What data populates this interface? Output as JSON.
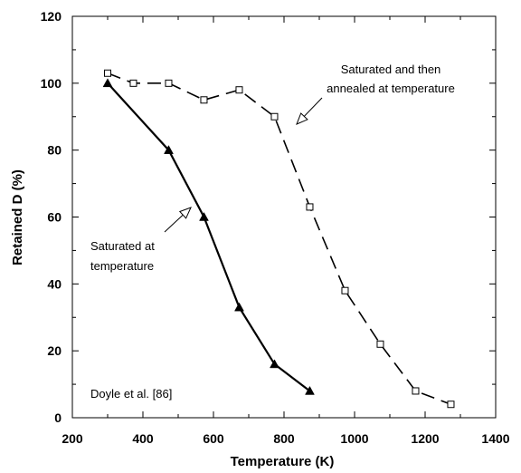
{
  "chart_data": {
    "type": "line",
    "xlabel": "Temperature (K)",
    "ylabel": "Retained D (%)",
    "xlim": [
      200,
      1400
    ],
    "ylim": [
      0,
      120
    ],
    "x_ticks": [
      200,
      400,
      600,
      800,
      1000,
      1200,
      1400
    ],
    "y_ticks": [
      0,
      20,
      40,
      60,
      80,
      100,
      120
    ],
    "grid": false,
    "series": [
      {
        "marker": "triangle",
        "line_style": "solid",
        "color": "#000000",
        "x": [
          300,
          473,
          573,
          673,
          773,
          873
        ],
        "y": [
          100,
          80,
          60,
          33,
          16,
          8
        ]
      },
      {
        "marker": "square",
        "line_style": "dashed",
        "color": "#000000",
        "x": [
          300,
          373,
          473,
          573,
          673,
          773,
          873,
          973,
          1073,
          1173,
          1273
        ],
        "y": [
          103,
          100,
          100,
          95,
          98,
          90,
          63,
          38,
          22,
          8,
          4
        ]
      }
    ],
    "annotations": [
      {
        "lines": [
          "Saturated and then",
          "annealed at temperature"
        ]
      },
      {
        "lines": [
          "Saturated at",
          "temperature"
        ]
      },
      {
        "lines": [
          "Doyle et al. [86]"
        ]
      }
    ]
  }
}
